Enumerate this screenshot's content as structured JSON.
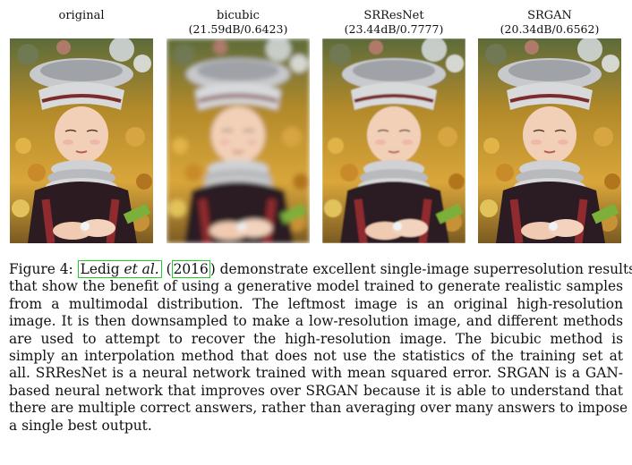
{
  "panels": [
    {
      "title": "original",
      "metric": ""
    },
    {
      "title": "bicubic",
      "metric": "(21.59dB/0.6423)"
    },
    {
      "title": "SRResNet",
      "metric": "(23.44dB/0.7777)"
    },
    {
      "title": "SRGAN",
      "metric": "(20.34dB/0.6562)"
    }
  ],
  "caption": {
    "prefix": "Figure 4:",
    "cite_author": "Ledig",
    "cite_etal": "et al.",
    "cite_year": "2016",
    "lines": [
      " demonstrate excellent single-image superresolution results",
      "that show the benefit of using a generative model trained to generate realistic samples",
      "from a multimodal distribution.  The leftmost image is an original high-resolution",
      "image. It is then downsampled to make a low-resolution image, and different methods",
      "are used to attempt to recover the high-resolution image.  The bicubic method is",
      "simply an interpolation method that does not use the statistics of the training set at",
      "all. SRResNet is a neural network trained with mean squared error. SRGAN is a GAN-",
      "based neural network that improves over SRGAN because it is able to understand that",
      "there are multiple correct answers, rather than averaging over many answers to impose",
      "a single best output."
    ]
  }
}
